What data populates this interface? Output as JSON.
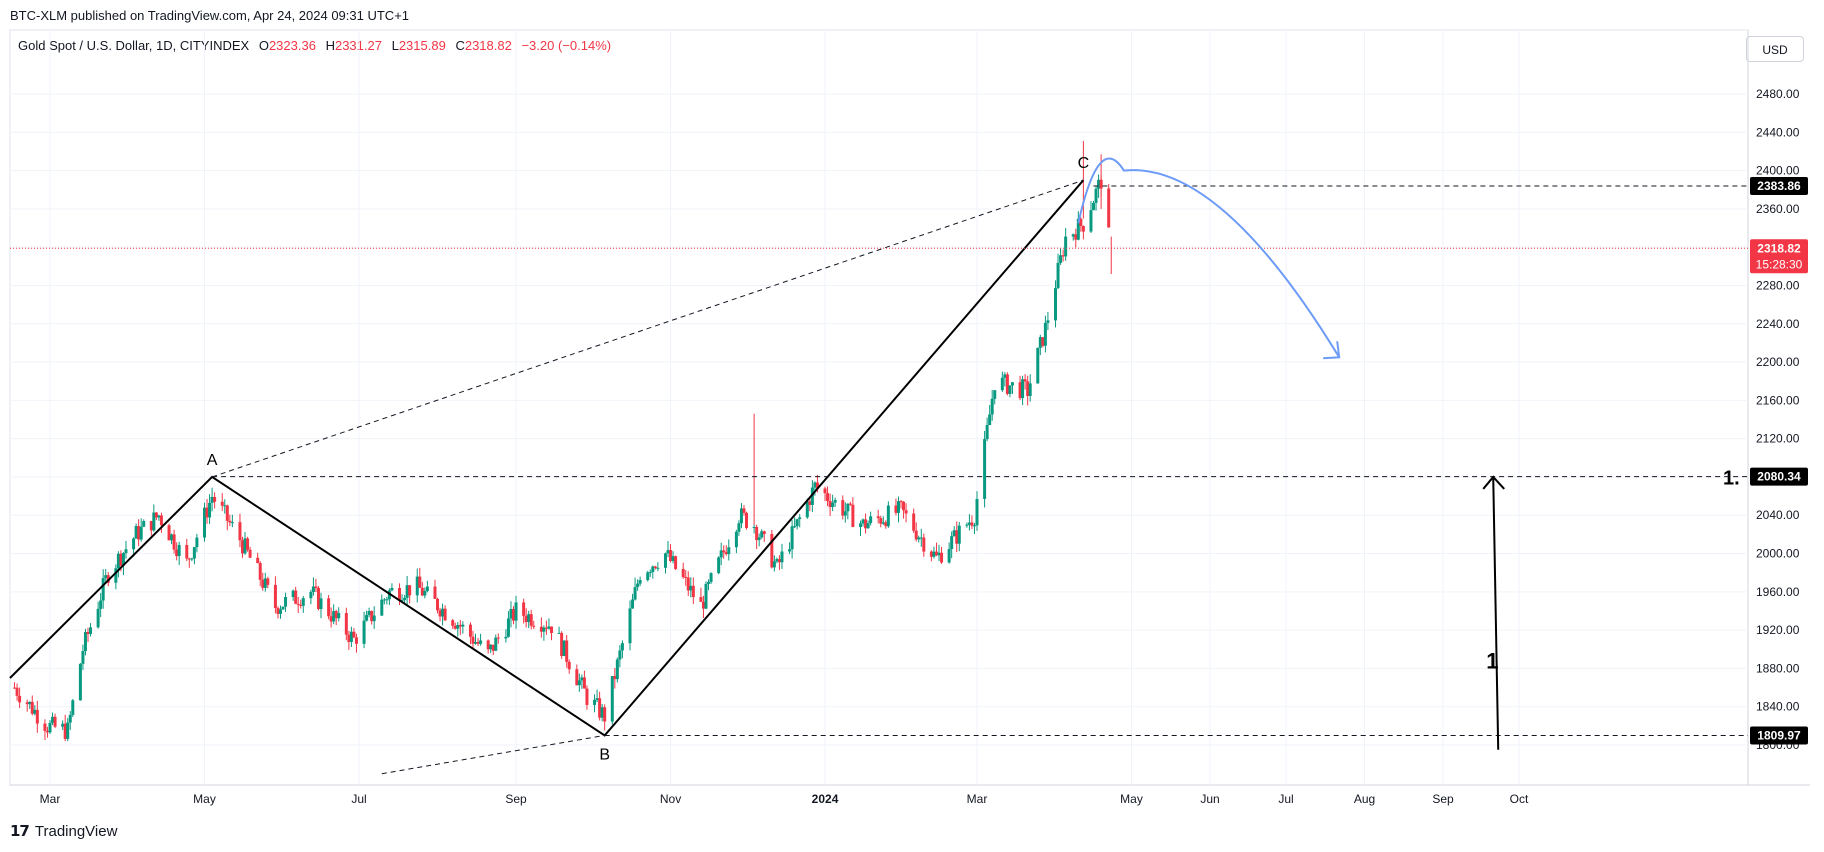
{
  "published_by": "BTC-XLM published on TradingView.com, Apr 24, 2024 09:31 UTC+1",
  "symbol_label": "Gold Spot / U.S. Dollar, 1D, CITYINDEX",
  "ohlc": {
    "o_label": "O",
    "o": "2323.36",
    "h_label": "H",
    "h": "2331.27",
    "l_label": "L",
    "l": "2315.89",
    "c_label": "C",
    "c": "2318.82",
    "change": "−3.20 (−0.14%)"
  },
  "currency": "USD",
  "brand": "TradingView",
  "colors": {
    "up": "#089981",
    "down": "#f23645",
    "curve": "#6d9bf7",
    "price_tag": "#f23645"
  },
  "price_tags": [
    {
      "label": "2383.86",
      "value": 2383.86,
      "style": "black"
    },
    {
      "label": "2318.82",
      "value": 2318.82,
      "style": "red",
      "sub": "15:28:30"
    },
    {
      "label": "2080.34",
      "value": 2080.34,
      "style": "black"
    },
    {
      "label": "1809.97",
      "value": 1809.97,
      "style": "black"
    }
  ],
  "chart_data": {
    "type": "candlestick",
    "y_axis_ticks": [
      "2480.00",
      "2440.00",
      "2400.00",
      "2360.00",
      "2320.00",
      "2280.00",
      "2240.00",
      "2200.00",
      "2160.00",
      "2120.00",
      "2080.00",
      "2040.00",
      "2000.00",
      "1960.00",
      "1920.00",
      "1880.00",
      "1840.00",
      "1800.00"
    ],
    "ylim": [
      1760,
      2520
    ],
    "x_axis_ticks": [
      {
        "label": "Mar",
        "date": "2023-03-01"
      },
      {
        "label": "May",
        "date": "2023-05-01"
      },
      {
        "label": "Jul",
        "date": "2023-07-01"
      },
      {
        "label": "Sep",
        "date": "2023-09-01"
      },
      {
        "label": "Nov",
        "date": "2023-11-01"
      },
      {
        "label": "2024",
        "date": "2024-01-01",
        "bold": true
      },
      {
        "label": "Mar",
        "date": "2024-03-01"
      },
      {
        "label": "May",
        "date": "2024-05-01"
      },
      {
        "label": "Jun",
        "date": "2024-06-01"
      },
      {
        "label": "Jul",
        "date": "2024-07-01"
      },
      {
        "label": "Aug",
        "date": "2024-08-01"
      },
      {
        "label": "Sep",
        "date": "2024-09-01"
      },
      {
        "label": "Oct",
        "date": "2024-10-01"
      }
    ],
    "price_path": [
      [
        "2023-02-15",
        1860
      ],
      [
        "2023-02-28",
        1820
      ],
      [
        "2023-03-08",
        1815
      ],
      [
        "2023-03-14",
        1900
      ],
      [
        "2023-03-24",
        1980
      ],
      [
        "2023-04-04",
        2020
      ],
      [
        "2023-04-13",
        2040
      ],
      [
        "2023-04-24",
        1990
      ],
      [
        "2023-05-04",
        2060
      ],
      [
        "2023-05-15",
        2015
      ],
      [
        "2023-05-29",
        1945
      ],
      [
        "2023-06-12",
        1960
      ],
      [
        "2023-06-29",
        1910
      ],
      [
        "2023-07-13",
        1960
      ],
      [
        "2023-07-24",
        1965
      ],
      [
        "2023-08-08",
        1930
      ],
      [
        "2023-08-21",
        1895
      ],
      [
        "2023-09-01",
        1940
      ],
      [
        "2023-09-15",
        1925
      ],
      [
        "2023-09-29",
        1850
      ],
      [
        "2023-10-06",
        1830
      ],
      [
        "2023-10-20",
        1980
      ],
      [
        "2023-10-30",
        2000
      ],
      [
        "2023-11-13",
        1945
      ],
      [
        "2023-11-28",
        2040
      ],
      [
        "2023-12-04",
        2030
      ],
      [
        "2023-12-13",
        1985
      ],
      [
        "2023-12-28",
        2070
      ],
      [
        "2024-01-16",
        2030
      ],
      [
        "2024-01-31",
        2045
      ],
      [
        "2024-02-14",
        1995
      ],
      [
        "2024-02-29",
        2040
      ],
      [
        "2024-03-08",
        2180
      ],
      [
        "2024-03-21",
        2170
      ],
      [
        "2024-03-28",
        2235
      ],
      [
        "2024-04-05",
        2330
      ],
      [
        "2024-04-12",
        2345
      ],
      [
        "2024-04-19",
        2390
      ],
      [
        "2024-04-22",
        2330
      ],
      [
        "2024-04-23",
        2320
      ]
    ],
    "wave_points": [
      {
        "label": "A",
        "date": "2023-05-04",
        "price": 2080
      },
      {
        "label": "B",
        "date": "2023-10-06",
        "price": 1810
      },
      {
        "label": "C",
        "date": "2024-04-12",
        "price": 2390
      }
    ],
    "projection_curve": {
      "from": [
        "2024-04-10",
        2345
      ],
      "peak": [
        "2024-04-28",
        2400
      ],
      "to": [
        "2024-07-22",
        2205
      ]
    },
    "range_arrow": {
      "date": "2024-09-22",
      "from": 1795,
      "to": 2080,
      "label": "1"
    },
    "range_label_top": "1."
  }
}
